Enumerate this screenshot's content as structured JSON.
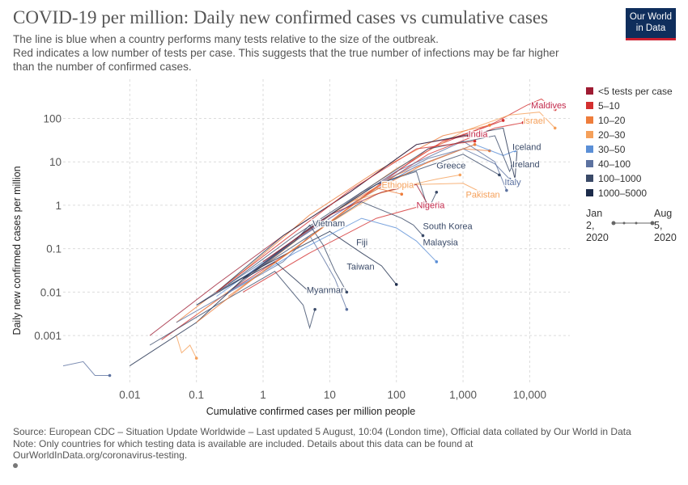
{
  "header": {
    "title": "COVID-19 per million: Daily new confirmed cases vs cumulative cases",
    "subtitle_lines": [
      "The line is blue when a country performs many tests relative to the size of the outbreak.",
      "Red indicates a low number of tests per case. This suggests that the true number of infections may be far higher",
      "than the number of confirmed cases."
    ],
    "logo_line1": "Our World",
    "logo_line2": "in Data"
  },
  "footer": {
    "lines": [
      "Source: European CDC – Situation Update Worldwide – Last updated 5 August, 10:04 (London time), Official data collated by Our World in Data",
      "Note: Only countries for which testing data is available are included. Details about this data can be found at",
      "OurWorldInData.org/coronavirus-testing."
    ]
  },
  "time_slider": {
    "start_line1": "Jan",
    "start_line2": "2,",
    "start_line3": "2020",
    "end_line1": "Aug",
    "end_line2": "5,",
    "end_line3": "2020"
  },
  "chart_data": {
    "type": "line",
    "scale": "log-log",
    "xlabel": "Cumulative confirmed cases per million people",
    "ylabel": "Daily new confirmed cases per million",
    "xlim": [
      0.001,
      40000
    ],
    "ylim": [
      8e-05,
      800
    ],
    "grid": true,
    "x_ticks": [
      {
        "value": 0.01,
        "label": "0.01"
      },
      {
        "value": 0.1,
        "label": "0.1"
      },
      {
        "value": 1,
        "label": "1"
      },
      {
        "value": 10,
        "label": "10"
      },
      {
        "value": 100,
        "label": "100"
      },
      {
        "value": 1000,
        "label": "1,000"
      },
      {
        "value": 10000,
        "label": "10,000"
      }
    ],
    "y_ticks": [
      {
        "value": 0.001,
        "label": "0.001"
      },
      {
        "value": 0.01,
        "label": "0.01"
      },
      {
        "value": 0.1,
        "label": "0.1"
      },
      {
        "value": 1,
        "label": "1"
      },
      {
        "value": 10,
        "label": "10"
      },
      {
        "value": 100,
        "label": "100"
      }
    ],
    "legend_position": "right",
    "legend": [
      {
        "label": "<5 tests per case",
        "color": "#9e1b32"
      },
      {
        "label": "5–10",
        "color": "#d32f2f"
      },
      {
        "label": "10–20",
        "color": "#ee7d3b"
      },
      {
        "label": "20–30",
        "color": "#f5a05a"
      },
      {
        "label": "30–50",
        "color": "#5b8fd6"
      },
      {
        "label": "40–100",
        "color": "#5c72a0"
      },
      {
        "label": "100–1000",
        "color": "#3a4a68"
      },
      {
        "label": "1000–5000",
        "color": "#1c2b4a"
      }
    ],
    "annotations": [
      {
        "label": "Maldives",
        "x": 10500,
        "y": 170,
        "color": "#c2284a"
      },
      {
        "label": "Israel",
        "x": 8000,
        "y": 75,
        "color": "#f5a05a"
      },
      {
        "label": "India",
        "x": 1200,
        "y": 37,
        "color": "#c2284a"
      },
      {
        "label": "Iceland",
        "x": 5500,
        "y": 19,
        "color": "#3a4a68"
      },
      {
        "label": "Ireland",
        "x": 5500,
        "y": 7.5,
        "color": "#3a4a68"
      },
      {
        "label": "Greece",
        "x": 400,
        "y": 7,
        "color": "#3a4a68"
      },
      {
        "label": "Italy",
        "x": 4200,
        "y": 2.9,
        "color": "#5c72a0"
      },
      {
        "label": "Ethiopia",
        "x": 60,
        "y": 2.5,
        "color": "#f5a05a"
      },
      {
        "label": "Pakistan",
        "x": 1100,
        "y": 1.5,
        "color": "#f5a05a"
      },
      {
        "label": "Nigeria",
        "x": 200,
        "y": 0.85,
        "color": "#c2284a"
      },
      {
        "label": "Vietnam",
        "x": 5.5,
        "y": 0.33,
        "color": "#3a4a68"
      },
      {
        "label": "South Korea",
        "x": 250,
        "y": 0.28,
        "color": "#3a4a68"
      },
      {
        "label": "Fiji",
        "x": 25,
        "y": 0.12,
        "color": "#3a4a68"
      },
      {
        "label": "Malaysia",
        "x": 250,
        "y": 0.12,
        "color": "#3a4a68"
      },
      {
        "label": "Taiwan",
        "x": 18,
        "y": 0.033,
        "color": "#3a4a68"
      },
      {
        "label": "Myanmar",
        "x": 4.5,
        "y": 0.0095,
        "color": "#3a4a68"
      }
    ],
    "series": [
      {
        "color_group": 1,
        "points": [
          [
            0.03,
            0.0008
          ],
          [
            0.3,
            0.01
          ],
          [
            3,
            0.15
          ],
          [
            30,
            1.5
          ],
          [
            300,
            20
          ],
          [
            3000,
            80
          ],
          [
            9000,
            200
          ],
          [
            15000,
            280
          ],
          [
            24000,
            160
          ]
        ]
      },
      {
        "color_group": 3,
        "points": [
          [
            0.1,
            0.003
          ],
          [
            1,
            0.04
          ],
          [
            10,
            0.6
          ],
          [
            100,
            7
          ],
          [
            1000,
            50
          ],
          [
            5000,
            120
          ],
          [
            14000,
            140
          ],
          [
            24000,
            60
          ]
        ]
      },
      {
        "color_group": 1,
        "points": [
          [
            0.5,
            0.02
          ],
          [
            5,
            0.3
          ],
          [
            50,
            3
          ],
          [
            500,
            30
          ],
          [
            2000,
            60
          ],
          [
            4000,
            90
          ]
        ]
      },
      {
        "color_group": 2,
        "points": [
          [
            0.05,
            0.002
          ],
          [
            0.5,
            0.03
          ],
          [
            5,
            0.6
          ],
          [
            50,
            6
          ],
          [
            500,
            40
          ],
          [
            2500,
            70
          ]
        ]
      },
      {
        "color_group": 0,
        "points": [
          [
            0.02,
            0.001
          ],
          [
            0.2,
            0.015
          ],
          [
            2,
            0.2
          ],
          [
            20,
            2
          ],
          [
            200,
            25
          ],
          [
            1200,
            40
          ]
        ]
      },
      {
        "color_group": 1,
        "points": [
          [
            0.3,
            0.01
          ],
          [
            3,
            0.1
          ],
          [
            30,
            1.5
          ],
          [
            300,
            15
          ],
          [
            3000,
            60
          ],
          [
            8000,
            80
          ]
        ]
      },
      {
        "color_group": 2,
        "points": [
          [
            1,
            0.05
          ],
          [
            10,
            0.6
          ],
          [
            100,
            5
          ],
          [
            1000,
            20
          ],
          [
            2500,
            18
          ]
        ]
      },
      {
        "color_group": 3,
        "points": [
          [
            2,
            0.1
          ],
          [
            20,
            1.2
          ],
          [
            100,
            2.5
          ],
          [
            400,
            4
          ],
          [
            900,
            5
          ]
        ]
      },
      {
        "color_group": 3,
        "points": [
          [
            5,
            0.2
          ],
          [
            50,
            1.8
          ],
          [
            200,
            3
          ],
          [
            1000,
            3.2
          ],
          [
            2500,
            1.6
          ]
        ]
      },
      {
        "color_group": 1,
        "points": [
          [
            0.5,
            0.01
          ],
          [
            5,
            0.08
          ],
          [
            50,
            0.5
          ],
          [
            200,
            0.9
          ],
          [
            400,
            1.1
          ]
        ]
      },
      {
        "color_group": 4,
        "points": [
          [
            0.2,
            0.008
          ],
          [
            2,
            0.1
          ],
          [
            20,
            1
          ],
          [
            200,
            8
          ],
          [
            1500,
            25
          ],
          [
            4000,
            14
          ],
          [
            6000,
            18
          ]
        ]
      },
      {
        "color_group": 5,
        "points": [
          [
            0.3,
            0.01
          ],
          [
            3,
            0.15
          ],
          [
            30,
            2
          ],
          [
            300,
            12
          ],
          [
            1000,
            20
          ],
          [
            3000,
            9
          ],
          [
            5000,
            4
          ]
        ]
      },
      {
        "color_group": 5,
        "points": [
          [
            0.1,
            0.005
          ],
          [
            1,
            0.05
          ],
          [
            10,
            0.6
          ],
          [
            100,
            6
          ],
          [
            1000,
            30
          ],
          [
            3000,
            10
          ],
          [
            4500,
            2.2
          ]
        ]
      },
      {
        "color_group": 6,
        "points": [
          [
            0.3,
            0.015
          ],
          [
            3,
            0.2
          ],
          [
            30,
            2
          ],
          [
            300,
            20
          ],
          [
            3000,
            40
          ],
          [
            5000,
            6
          ],
          [
            5500,
            8
          ]
        ]
      },
      {
        "color_group": 6,
        "points": [
          [
            0.5,
            0.02
          ],
          [
            5,
            0.3
          ],
          [
            50,
            3
          ],
          [
            300,
            8
          ],
          [
            1000,
            15
          ],
          [
            3500,
            5
          ]
        ]
      },
      {
        "color_group": 7,
        "points": [
          [
            0.2,
            0.01
          ],
          [
            2,
            0.2
          ],
          [
            20,
            2
          ],
          [
            200,
            25
          ],
          [
            4000,
            60
          ],
          [
            6000,
            4
          ],
          [
            6500,
            20
          ]
        ]
      },
      {
        "color_group": 6,
        "points": [
          [
            0.5,
            0.02
          ],
          [
            5,
            0.3
          ],
          [
            50,
            3
          ],
          [
            200,
            6
          ],
          [
            300,
            0.8
          ],
          [
            400,
            2
          ]
        ]
      },
      {
        "color_group": 6,
        "points": [
          [
            0.2,
            0.01
          ],
          [
            1,
            0.04
          ],
          [
            5,
            0.2
          ],
          [
            30,
            1.2
          ],
          [
            120,
            0.5
          ],
          [
            180,
            0.35
          ],
          [
            250,
            0.2
          ]
        ]
      },
      {
        "color_group": 7,
        "points": [
          [
            0.1,
            0.005
          ],
          [
            1,
            0.04
          ],
          [
            10,
            0.25
          ],
          [
            30,
            0.08
          ],
          [
            60,
            0.04
          ],
          [
            100,
            0.015
          ]
        ]
      },
      {
        "color_group": 6,
        "points": [
          [
            0.5,
            0.02
          ],
          [
            3,
            0.15
          ],
          [
            5,
            0.35
          ],
          [
            8,
            0.12
          ],
          [
            12,
            0.03
          ],
          [
            18,
            0.01
          ]
        ]
      },
      {
        "color_group": 5,
        "points": [
          [
            0.05,
            0.002
          ],
          [
            0.5,
            0.015
          ],
          [
            2,
            0.05
          ],
          [
            5,
            0.2
          ],
          [
            8,
            0.06
          ],
          [
            12,
            0.02
          ],
          [
            18,
            0.004
          ]
        ]
      },
      {
        "color_group": 7,
        "points": [
          [
            0.01,
            0.0002
          ],
          [
            0.1,
            0.002
          ],
          [
            0.5,
            0.02
          ],
          [
            1.5,
            0.05
          ],
          [
            3,
            0.02
          ],
          [
            5,
            0.01
          ]
        ]
      },
      {
        "color_group": 6,
        "points": [
          [
            0.02,
            0.0006
          ],
          [
            0.2,
            0.005
          ],
          [
            1.5,
            0.03
          ],
          [
            4,
            0.005
          ],
          [
            5,
            0.0015
          ],
          [
            6,
            0.004
          ]
        ]
      },
      {
        "color_group": 4,
        "points": [
          [
            0.3,
            0.01
          ],
          [
            3,
            0.08
          ],
          [
            30,
            0.5
          ],
          [
            100,
            0.3
          ],
          [
            200,
            0.15
          ],
          [
            400,
            0.05
          ]
        ]
      },
      {
        "color_group": 5,
        "points": [
          [
            0.001,
            0.0002
          ],
          [
            0.002,
            0.00025
          ],
          [
            0.003,
            0.00012
          ],
          [
            0.005,
            0.00012
          ]
        ]
      },
      {
        "color_group": 3,
        "points": [
          [
            0.05,
            0.001
          ],
          [
            0.06,
            0.0004
          ],
          [
            0.08,
            0.0006
          ],
          [
            0.1,
            0.0003
          ]
        ]
      },
      {
        "color_group": 2,
        "points": [
          [
            0.3,
            0.008
          ],
          [
            3,
            0.1
          ],
          [
            30,
            1.5
          ],
          [
            300,
            10
          ],
          [
            1500,
            25
          ]
        ]
      },
      {
        "color_group": 0,
        "points": [
          [
            1,
            0.05
          ],
          [
            10,
            0.6
          ],
          [
            60,
            2
          ],
          [
            200,
            3
          ],
          [
            300,
            1
          ]
        ]
      },
      {
        "color_group": 2,
        "points": [
          [
            0.1,
            0.002
          ],
          [
            1,
            0.03
          ],
          [
            10,
            0.4
          ],
          [
            50,
            2.5
          ],
          [
            120,
            1.8
          ]
        ]
      },
      {
        "color_group": 1,
        "points": [
          [
            0.2,
            0.01
          ],
          [
            2,
            0.15
          ],
          [
            20,
            2.2
          ],
          [
            200,
            20
          ],
          [
            1500,
            30
          ]
        ]
      }
    ]
  }
}
